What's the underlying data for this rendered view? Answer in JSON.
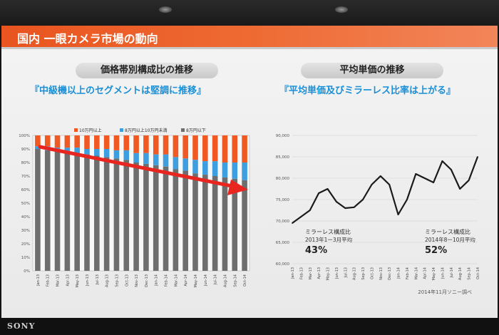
{
  "header": {
    "title": "国内 一眼カメラ市場の動向"
  },
  "left_panel": {
    "heading": "価格帯別構成比の推移",
    "subtitle": "『中級機以上のセグメントは堅調に推移』"
  },
  "right_panel": {
    "heading": "平均単価の推移",
    "subtitle": "『平均単価及びミラーレス比率は上がる』"
  },
  "source": "2014年11月ソニー調べ",
  "brand": "SONY",
  "colors": {
    "high": "#f05a22",
    "mid": "#3d9fe0",
    "low": "#6e6e6e",
    "arrow": "#e8251f",
    "line": "#1a1a1a"
  },
  "chart_data": [
    {
      "type": "bar",
      "stacked": true,
      "percent": true,
      "categories": [
        "Jan-13",
        "Feb-13",
        "Mar-13",
        "Apr-13",
        "May-13",
        "Jun-13",
        "Jul-13",
        "Aug-13",
        "Sep-13",
        "Oct-13",
        "Nov-13",
        "Dec-13",
        "Jan-14",
        "Feb-14",
        "Mar-14",
        "Apr-14",
        "May-14",
        "Jun-14",
        "Jul-14",
        "Aug-14",
        "Sep-14",
        "Oct-14"
      ],
      "series": [
        {
          "name": "8万円以下",
          "values": [
            90,
            89,
            88,
            88,
            87,
            86,
            85,
            84,
            83,
            82,
            80,
            79,
            78,
            77,
            75,
            74,
            72,
            71,
            70,
            69,
            68,
            67
          ]
        },
        {
          "name": "8万円以上10万円未満",
          "values": [
            2,
            3,
            3,
            3,
            4,
            4,
            5,
            6,
            6,
            7,
            7,
            8,
            8,
            9,
            9,
            9,
            10,
            10,
            11,
            11,
            12,
            13
          ]
        },
        {
          "name": "10万円以上",
          "values": [
            8,
            8,
            9,
            9,
            9,
            10,
            10,
            10,
            11,
            11,
            13,
            13,
            14,
            14,
            16,
            17,
            18,
            19,
            19,
            20,
            20,
            20
          ]
        }
      ],
      "legend_position": "top",
      "ylim": [
        0,
        100
      ],
      "yticks": [
        "0%",
        "10%",
        "20%",
        "30%",
        "40%",
        "50%",
        "60%",
        "70%",
        "80%",
        "90%",
        "100%"
      ],
      "annotation": "downward-trend-arrow"
    },
    {
      "type": "line",
      "categories": [
        "Jan-13",
        "Feb-13",
        "Mar-13",
        "Apr-13",
        "May-13",
        "Jun-13",
        "Jul-13",
        "Aug-13",
        "Sep-13",
        "Oct-13",
        "Nov-13",
        "Dec-13",
        "Jan-14",
        "Feb-14",
        "Mar-14",
        "Apr-14",
        "May-14",
        "Jun-14",
        "Jul-14",
        "Aug-14",
        "Sep-14",
        "Oct-14"
      ],
      "values": [
        69500,
        71000,
        72500,
        76500,
        77500,
        74500,
        73000,
        73200,
        75000,
        78500,
        80500,
        78500,
        71500,
        75000,
        81000,
        80000,
        79000,
        84000,
        82000,
        77500,
        79500,
        85000
      ],
      "ylim": [
        60000,
        90000
      ],
      "yticks": [
        "60,000",
        "65,000",
        "70,000",
        "75,000",
        "80,000",
        "85,000",
        "90,000"
      ],
      "annotations": [
        {
          "label": "ミラーレス構成比",
          "period": "2013年1ー3月平均",
          "value": "43%"
        },
        {
          "label": "ミラーレス構成比",
          "period": "2014年8ー10月平均",
          "value": "52%"
        }
      ]
    }
  ]
}
